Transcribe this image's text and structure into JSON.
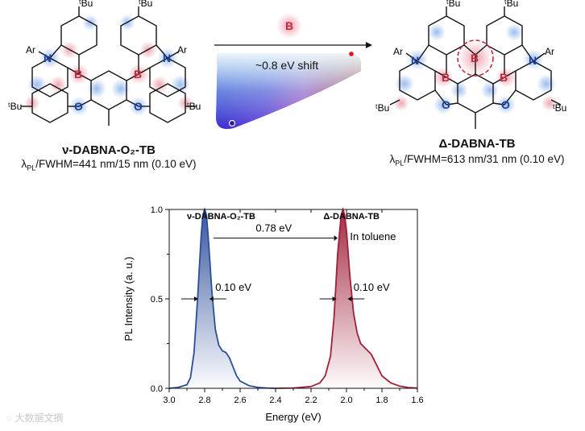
{
  "scheme": {
    "left_molecule": {
      "name": "ν-DABNA-O₂-TB",
      "property_lambda": "λ",
      "property_sub": "PL",
      "property_rest": "/FWHM=441 nm/15 nm (0.10 eV)"
    },
    "right_molecule": {
      "name": "Δ-DABNA-TB",
      "property_lambda": "λ",
      "property_sub": "PL",
      "property_rest": "/FWHM=613 nm/31 nm (0.10 eV)"
    },
    "arrow_badge": "B",
    "shift_label": "~0.8 eV shift",
    "atom_labels": {
      "tbu": "ᵗBu",
      "ar": "Ar",
      "n": "N",
      "b": "B",
      "o": "O"
    }
  },
  "chart_data": {
    "type": "line",
    "xlabel": "Energy (eV)",
    "ylabel": "PL Intensity (a. u.)",
    "xlim": [
      3.0,
      1.6
    ],
    "ylim": [
      0.0,
      1.0
    ],
    "x_ticks": [
      "3.0",
      "2.8",
      "2.6",
      "2.4",
      "2.2",
      "2.0",
      "1.8",
      "1.6"
    ],
    "y_ticks": [
      "0.0",
      "0.5",
      "1.0"
    ],
    "series": [
      {
        "name": "ν-DABNA-O₂-TB",
        "color": "#2c4e9a",
        "x": [
          3.0,
          2.95,
          2.9,
          2.88,
          2.86,
          2.84,
          2.82,
          2.81,
          2.8,
          2.79,
          2.78,
          2.76,
          2.74,
          2.72,
          2.7,
          2.68,
          2.66,
          2.64,
          2.62,
          2.6,
          2.55,
          2.5,
          2.45,
          2.4
        ],
        "y": [
          0.0,
          0.005,
          0.02,
          0.06,
          0.2,
          0.5,
          0.85,
          0.97,
          1.0,
          0.97,
          0.85,
          0.55,
          0.33,
          0.24,
          0.21,
          0.2,
          0.17,
          0.12,
          0.07,
          0.04,
          0.015,
          0.005,
          0.002,
          0.0
        ]
      },
      {
        "name": "Δ-DABNA-TB",
        "color": "#a0203a",
        "x": [
          2.4,
          2.3,
          2.2,
          2.15,
          2.12,
          2.09,
          2.07,
          2.05,
          2.03,
          2.02,
          2.01,
          2.0,
          1.98,
          1.96,
          1.94,
          1.92,
          1.9,
          1.88,
          1.86,
          1.84,
          1.82,
          1.8,
          1.75,
          1.7,
          1.65,
          1.6
        ],
        "y": [
          0.0,
          0.002,
          0.01,
          0.03,
          0.07,
          0.18,
          0.4,
          0.75,
          0.97,
          1.0,
          0.97,
          0.88,
          0.62,
          0.42,
          0.31,
          0.25,
          0.23,
          0.21,
          0.19,
          0.15,
          0.11,
          0.07,
          0.03,
          0.012,
          0.004,
          0.001
        ]
      }
    ],
    "annotations": {
      "left_label": "ν-DABNA-O₂-TB",
      "right_label": "Δ-DABNA-TB",
      "shift_label": "0.78 eV",
      "solvent_label": "In toluene",
      "left_fwhm": "0.10 eV",
      "right_fwhm": "0.10 eV"
    }
  },
  "watermark": "大数据文摘"
}
